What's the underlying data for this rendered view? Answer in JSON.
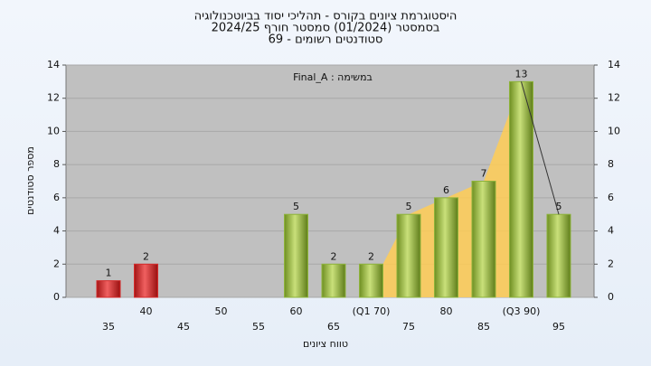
{
  "chart_data": {
    "type": "bar",
    "title": "היסטוגרמת ציונים בקורס - תהליכי יסוד בביוטכנולוגיה",
    "subtitle": "בסמסטר (01/2024) סמסטר חורף 2024/25",
    "subtitle2": "סטודנטים רשומים - 69",
    "annotation": "Final_A : במשימה",
    "x_label": "טווח ציונים",
    "y_label": "מספר סטודנטים",
    "categories": [
      "35",
      "40",
      "45",
      "50",
      "55",
      "60",
      "65",
      "(Q1 70)",
      "75",
      "80",
      "85",
      "(Q3 90)",
      "95"
    ],
    "values": [
      1,
      2,
      0,
      0,
      0,
      5,
      2,
      2,
      5,
      6,
      7,
      13,
      5
    ],
    "value_labels": [
      "1",
      "2",
      null,
      null,
      null,
      "5",
      "2",
      "2",
      "5",
      "6",
      "7",
      "13",
      "5"
    ],
    "colors": [
      "#d42a2a",
      "#d42a2a",
      "#8db33a",
      "#8db33a",
      "#8db33a",
      "#8db33a",
      "#8db33a",
      "#8db33a",
      "#8db33a",
      "#8db33a",
      "#8db33a",
      "#8db33a",
      "#8db33a"
    ],
    "area_color": "#ffcc55",
    "ylim": [
      0,
      14
    ],
    "yticks": [
      0,
      2,
      4,
      6,
      8,
      10,
      12,
      14
    ],
    "y2lim": [
      0,
      14
    ],
    "y2ticks": [
      0,
      2,
      4,
      6,
      8,
      10,
      12,
      14
    ],
    "grid": true
  }
}
